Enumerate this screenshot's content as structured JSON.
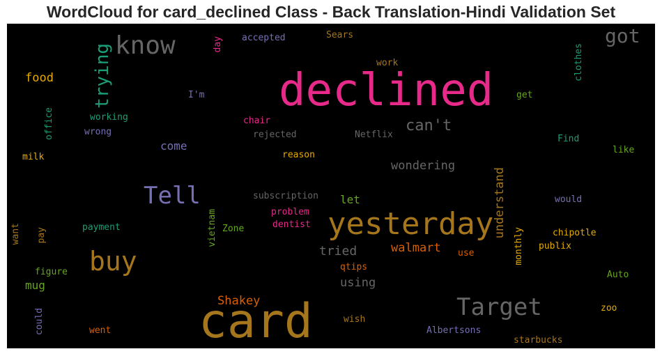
{
  "chart_data": {
    "type": "wordcloud",
    "title": "WordCloud for card_declined Class - Back Translation-Hindi Validation Set",
    "words": [
      {
        "text": "declined",
        "color": "#e7298a"
      },
      {
        "text": "card",
        "color": "#a6761d"
      },
      {
        "text": "yesterday",
        "color": "#a6761d"
      },
      {
        "text": "Target",
        "color": "#666666"
      },
      {
        "text": "know",
        "color": "#666666"
      },
      {
        "text": "buy",
        "color": "#a6761d"
      },
      {
        "text": "Tell",
        "color": "#7570b3"
      },
      {
        "text": "trying",
        "color": "#1b9e77"
      },
      {
        "text": "got",
        "color": "#666666"
      },
      {
        "text": "can't",
        "color": "#666666"
      },
      {
        "text": "understand",
        "color": "#a6761d"
      },
      {
        "text": "wondering",
        "color": "#666666"
      },
      {
        "text": "walmart",
        "color": "#d95f02"
      },
      {
        "text": "tried",
        "color": "#666666"
      },
      {
        "text": "using",
        "color": "#666666"
      },
      {
        "text": "Shakey",
        "color": "#d95f02"
      },
      {
        "text": "food",
        "color": "#e6ab02"
      },
      {
        "text": "come",
        "color": "#7570b3"
      },
      {
        "text": "mug",
        "color": "#66a61e"
      },
      {
        "text": "let",
        "color": "#66a61e"
      },
      {
        "text": "accepted",
        "color": "#7570b3"
      },
      {
        "text": "Sears",
        "color": "#a6761d"
      },
      {
        "text": "day",
        "color": "#e7298a"
      },
      {
        "text": "work",
        "color": "#a6761d"
      },
      {
        "text": "clothes",
        "color": "#1b9e77"
      },
      {
        "text": "I'm",
        "color": "#7570b3"
      },
      {
        "text": "get",
        "color": "#66a61e"
      },
      {
        "text": "office",
        "color": "#1b9e77"
      },
      {
        "text": "working",
        "color": "#1b9e77"
      },
      {
        "text": "chair",
        "color": "#e7298a"
      },
      {
        "text": "wrong",
        "color": "#7570b3"
      },
      {
        "text": "rejected",
        "color": "#666666"
      },
      {
        "text": "Netflix",
        "color": "#666666"
      },
      {
        "text": "Find",
        "color": "#1b9e77"
      },
      {
        "text": "milk",
        "color": "#e6ab02"
      },
      {
        "text": "reason",
        "color": "#e6ab02"
      },
      {
        "text": "like",
        "color": "#66a61e"
      },
      {
        "text": "subscription",
        "color": "#666666"
      },
      {
        "text": "would",
        "color": "#7570b3"
      },
      {
        "text": "problem",
        "color": "#e7298a"
      },
      {
        "text": "want",
        "color": "#a6761d"
      },
      {
        "text": "pay",
        "color": "#a6761d"
      },
      {
        "text": "payment",
        "color": "#1b9e77"
      },
      {
        "text": "vietnam",
        "color": "#66a61e"
      },
      {
        "text": "Zone",
        "color": "#66a61e"
      },
      {
        "text": "dentist",
        "color": "#e7298a"
      },
      {
        "text": "monthly",
        "color": "#e6ab02"
      },
      {
        "text": "chipotle",
        "color": "#e6ab02"
      },
      {
        "text": "publix",
        "color": "#e6ab02"
      },
      {
        "text": "use",
        "color": "#d95f02"
      },
      {
        "text": "qtips",
        "color": "#d95f02"
      },
      {
        "text": "figure",
        "color": "#66a61e"
      },
      {
        "text": "Auto",
        "color": "#66a61e"
      },
      {
        "text": "could",
        "color": "#7570b3"
      },
      {
        "text": "zoo",
        "color": "#e6ab02"
      },
      {
        "text": "wish",
        "color": "#a6761d"
      },
      {
        "text": "went",
        "color": "#d95f02"
      },
      {
        "text": "Albertsons",
        "color": "#7570b3"
      },
      {
        "text": "starbucks",
        "color": "#a6761d"
      }
    ]
  }
}
